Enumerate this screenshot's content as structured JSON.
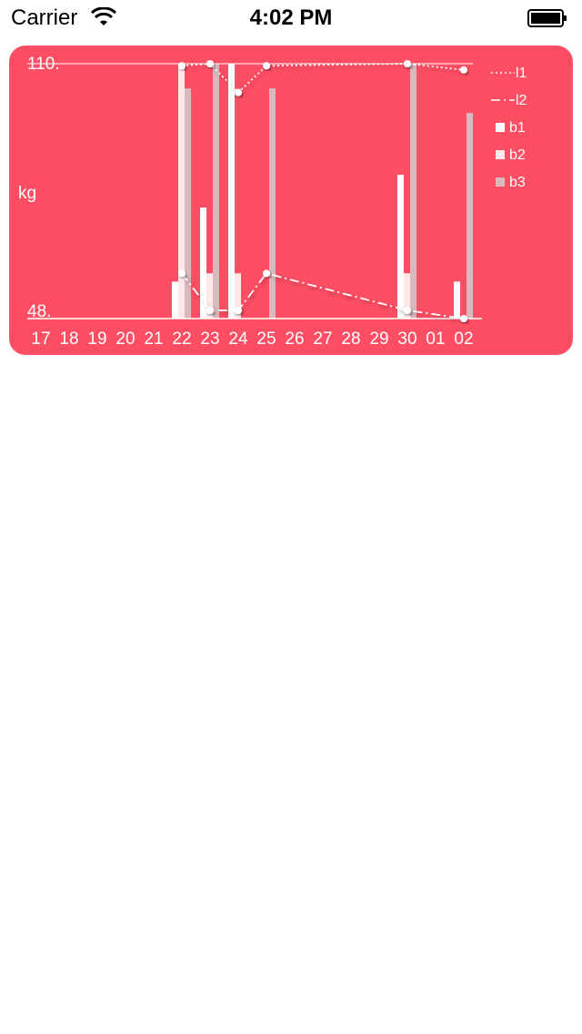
{
  "status": {
    "carrier": "Carrier",
    "time": "4:02 PM"
  },
  "chart_data": {
    "type": "bar",
    "ylabel": "kg",
    "ytick_labels": [
      "110.",
      "48."
    ],
    "ylim": [
      48,
      110
    ],
    "categories": [
      "17",
      "18",
      "19",
      "20",
      "21",
      "22",
      "23",
      "24",
      "25",
      "26",
      "27",
      "28",
      "29",
      "30",
      "01",
      "02"
    ],
    "series": [
      {
        "name": "b1",
        "kind": "bar",
        "color": "#ffffff",
        "values": [
          null,
          null,
          null,
          null,
          null,
          57,
          75,
          110,
          null,
          null,
          null,
          null,
          null,
          83,
          null,
          57
        ]
      },
      {
        "name": "b2",
        "kind": "bar",
        "color": "#ffe7ea",
        "values": [
          null,
          null,
          null,
          null,
          null,
          110,
          59,
          59,
          null,
          null,
          null,
          null,
          null,
          59,
          null,
          null
        ]
      },
      {
        "name": "b3",
        "kind": "bar",
        "color": "#d8b9bd",
        "values": [
          null,
          null,
          null,
          null,
          null,
          104,
          110,
          null,
          104,
          null,
          null,
          null,
          null,
          110,
          null,
          98
        ]
      },
      {
        "name": "l1",
        "kind": "line",
        "dash": "2,3",
        "values": [
          null,
          null,
          null,
          null,
          null,
          109.5,
          110,
          103,
          109.5,
          null,
          null,
          null,
          null,
          110,
          null,
          108.5
        ]
      },
      {
        "name": "l2",
        "kind": "line",
        "dash": "10,4,2,4",
        "values": [
          null,
          null,
          null,
          null,
          null,
          59,
          50,
          50,
          59,
          null,
          null,
          null,
          null,
          50,
          null,
          48
        ]
      }
    ],
    "grid": false,
    "legend": "right"
  }
}
